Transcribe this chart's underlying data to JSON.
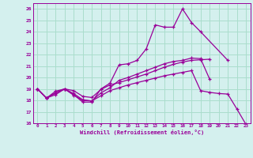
{
  "background_color": "#d4f0ee",
  "grid_color": "#aaddcc",
  "line_color": "#990099",
  "marker_color": "#990099",
  "xlabel": "Windchill (Refroidissement éolien,°C)",
  "xlim": [
    -0.5,
    23.5
  ],
  "ylim": [
    16,
    26.5
  ],
  "yticks": [
    16,
    17,
    18,
    19,
    20,
    21,
    22,
    23,
    24,
    25,
    26
  ],
  "xticks": [
    0,
    1,
    2,
    3,
    4,
    5,
    6,
    7,
    8,
    9,
    10,
    11,
    12,
    13,
    14,
    15,
    16,
    17,
    18,
    19,
    20,
    21,
    22,
    23
  ],
  "series": [
    {
      "x": [
        0,
        1,
        2,
        3,
        4,
        5,
        6,
        7,
        8,
        9,
        10,
        11,
        12,
        13,
        14,
        15,
        16,
        17,
        18,
        21
      ],
      "y": [
        19.0,
        18.2,
        18.5,
        19.0,
        18.5,
        17.85,
        17.85,
        19.0,
        19.5,
        21.1,
        21.2,
        21.5,
        22.5,
        24.6,
        24.4,
        24.4,
        26.0,
        24.8,
        24.0,
        21.5
      ]
    },
    {
      "x": [
        0,
        1,
        2,
        3,
        4,
        5,
        6,
        7,
        8,
        9,
        10,
        11,
        12,
        13,
        14,
        15,
        16,
        17,
        18,
        19
      ],
      "y": [
        19.0,
        18.2,
        18.8,
        19.0,
        18.85,
        18.35,
        18.25,
        18.95,
        19.35,
        19.55,
        19.8,
        20.05,
        20.3,
        20.6,
        20.9,
        21.15,
        21.35,
        21.5,
        21.55,
        21.6
      ]
    },
    {
      "x": [
        0,
        1,
        2,
        3,
        4,
        5,
        6,
        7,
        8,
        9,
        10,
        11,
        12,
        13,
        14,
        15,
        16,
        17,
        18,
        19
      ],
      "y": [
        19.0,
        18.2,
        18.65,
        19.0,
        18.6,
        18.05,
        17.95,
        18.65,
        19.1,
        19.75,
        20.0,
        20.3,
        20.6,
        20.9,
        21.2,
        21.4,
        21.5,
        21.7,
        21.65,
        19.85
      ]
    },
    {
      "x": [
        0,
        1,
        2,
        3,
        4,
        5,
        6,
        7,
        8,
        9,
        10,
        11,
        12,
        13,
        14,
        15,
        16,
        17,
        18,
        19,
        20,
        21,
        22,
        23
      ],
      "y": [
        19.0,
        18.2,
        18.65,
        19.0,
        18.45,
        18.0,
        17.95,
        18.4,
        18.85,
        19.1,
        19.35,
        19.55,
        19.75,
        19.95,
        20.15,
        20.3,
        20.45,
        20.6,
        18.85,
        18.7,
        18.6,
        18.55,
        17.25,
        15.9
      ]
    }
  ]
}
